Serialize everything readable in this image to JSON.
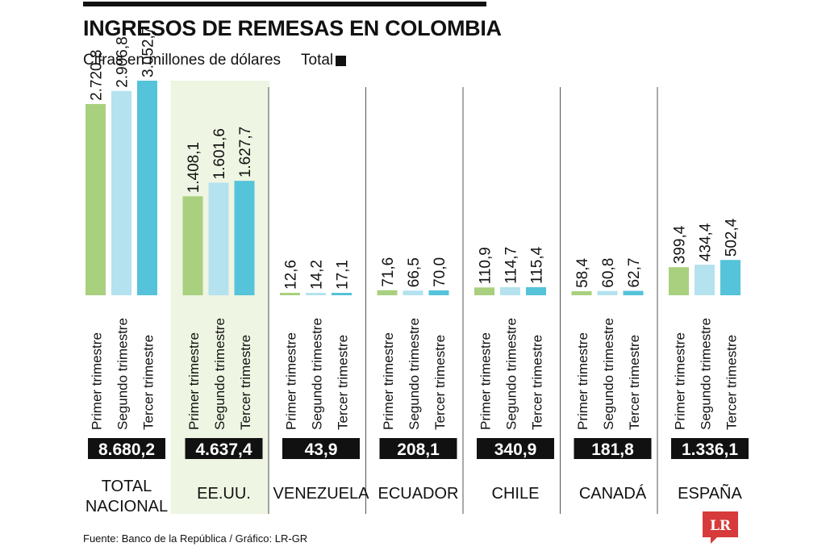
{
  "title": "INGRESOS DE REMESAS EN COLOMBIA",
  "subtitle": "Cifras en millones de dólares",
  "legend_label": "Total",
  "source": "Fuente: Banco de la República / Gráfico: LR-GR",
  "logo_text": "LR",
  "colors": {
    "q1": "#a9d07e",
    "q2": "#b4e2ee",
    "q3": "#55c3d9",
    "highlight": "#eef5e2",
    "total_box": "#111111",
    "divider": "#555555"
  },
  "chart_data": {
    "type": "bar",
    "series_labels": [
      "Primer trimestre",
      "Segundo trimestre",
      "Tercer trimestre"
    ],
    "groups": [
      {
        "name": "TOTAL NACIONAL",
        "name_lines": [
          "TOTAL",
          "NACIONAL"
        ],
        "values": [
          2720.8,
          2906.8,
          3052.7
        ],
        "value_labels": [
          "2.720,8",
          "2.906,8",
          "3.052,7"
        ],
        "total": 8680.2,
        "total_label": "8.680,2"
      },
      {
        "name": "EE.UU.",
        "name_lines": [
          "EE.UU."
        ],
        "values": [
          1408.1,
          1601.6,
          1627.7
        ],
        "value_labels": [
          "1.408,1",
          "1.601,6",
          "1.627,7"
        ],
        "total": 4637.4,
        "total_label": "4.637,4",
        "highlight": true
      },
      {
        "name": "VENEZUELA",
        "name_lines": [
          "VENEZUELA"
        ],
        "values": [
          12.6,
          14.2,
          17.1
        ],
        "value_labels": [
          "12,6",
          "14,2",
          "17,1"
        ],
        "total": 43.9,
        "total_label": "43,9"
      },
      {
        "name": "ECUADOR",
        "name_lines": [
          "ECUADOR"
        ],
        "values": [
          71.6,
          66.5,
          70.0
        ],
        "value_labels": [
          "71,6",
          "66,5",
          "70,0"
        ],
        "total": 208.1,
        "total_label": "208,1"
      },
      {
        "name": "CHILE",
        "name_lines": [
          "CHILE"
        ],
        "values": [
          110.9,
          114.7,
          115.4
        ],
        "value_labels": [
          "110,9",
          "114,7",
          "115,4"
        ],
        "total": 340.9,
        "total_label": "340,9"
      },
      {
        "name": "CANADÁ",
        "name_lines": [
          "CANADÁ"
        ],
        "values": [
          58.4,
          60.8,
          62.7
        ],
        "value_labels": [
          "58,4",
          "60,8",
          "62,7"
        ],
        "total": 181.8,
        "total_label": "181,8"
      },
      {
        "name": "ESPAÑA",
        "name_lines": [
          "ESPAÑA"
        ],
        "values": [
          399.4,
          434.4,
          502.4
        ],
        "value_labels": [
          "399,4",
          "434,4",
          "502,4"
        ],
        "total": 1336.1,
        "total_label": "1.336,1"
      }
    ]
  }
}
